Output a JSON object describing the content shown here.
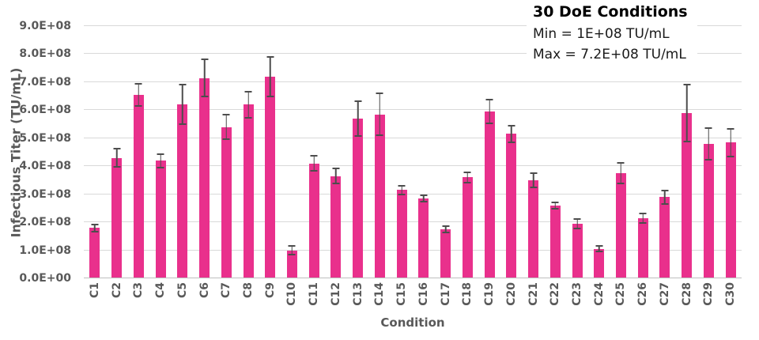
{
  "annotation": {
    "title": "30 DoE Conditions",
    "min_line": "Min = 1E+08 TU/mL",
    "max_line": "Max = 7.2E+08 TU/mL"
  },
  "chart_data": {
    "type": "bar",
    "title": "30 DoE Conditions",
    "xlabel": "Condition",
    "ylabel": "Infectious Titer (TU/mL)",
    "categories": [
      "C1",
      "C2",
      "C3",
      "C4",
      "C5",
      "C6",
      "C7",
      "C8",
      "C9",
      "C10",
      "C11",
      "C12",
      "C13",
      "C14",
      "C15",
      "C16",
      "C17",
      "C18",
      "C19",
      "C20",
      "C21",
      "C22",
      "C23",
      "C24",
      "C25",
      "C26",
      "C27",
      "C28",
      "C29",
      "C30"
    ],
    "values": [
      180000000,
      430000000,
      655000000,
      420000000,
      620000000,
      715000000,
      540000000,
      620000000,
      720000000,
      100000000,
      410000000,
      365000000,
      570000000,
      585000000,
      315000000,
      285000000,
      175000000,
      360000000,
      595000000,
      515000000,
      350000000,
      260000000,
      195000000,
      105000000,
      375000000,
      215000000,
      290000000,
      590000000,
      480000000,
      485000000
    ],
    "errors": [
      15000000,
      35000000,
      42000000,
      27000000,
      73000000,
      68000000,
      46000000,
      50000000,
      73000000,
      18000000,
      30000000,
      30000000,
      65000000,
      78000000,
      18000000,
      15000000,
      15000000,
      20000000,
      45000000,
      32000000,
      27000000,
      15000000,
      20000000,
      13000000,
      40000000,
      20000000,
      27000000,
      105000000,
      60000000,
      52000000
    ],
    "ylim": [
      0,
      900000000
    ],
    "ytick_step": 100000000,
    "ytick_labels": [
      "0.0E+00",
      "1.0E+08",
      "2.0E+08",
      "3.0E+08",
      "4.0E+08",
      "5.0E+08",
      "6.0E+08",
      "7.0E+08",
      "8.0E+08",
      "9.0E+08"
    ],
    "grid": "horizontal",
    "legend": "none",
    "annotations": [
      "30 DoE Conditions",
      "Min = 1E+08 TU/mL",
      "Max = 7.2E+08 TU/mL"
    ],
    "bar_color": "#e9308c",
    "error_bar_color": "#4d4d4d",
    "gridline_color": "#d9d9d9",
    "axis_text_color": "#595959"
  }
}
